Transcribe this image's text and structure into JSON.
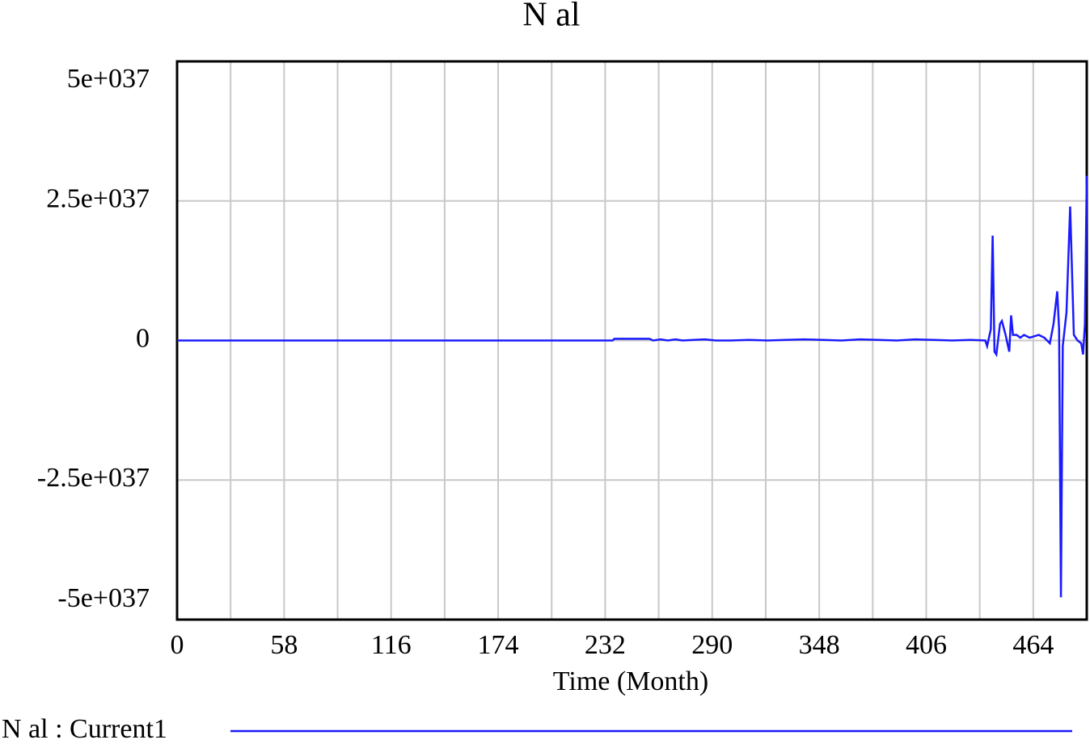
{
  "chart_data": {
    "type": "line",
    "title": "N al",
    "x_label": "Time (Month)",
    "x": [
      0,
      236,
      237,
      256,
      258,
      262,
      266,
      270,
      274,
      280,
      286,
      292,
      300,
      310,
      320,
      330,
      340,
      350,
      360,
      370,
      380,
      390,
      400,
      410,
      420,
      430,
      438,
      439,
      441,
      442,
      443,
      444,
      446,
      447,
      449,
      451,
      452,
      453,
      455,
      457,
      459,
      462,
      467,
      470,
      473,
      475,
      477,
      478,
      479,
      480,
      482,
      484,
      486,
      488,
      490,
      491,
      492,
      493
    ],
    "series": [
      {
        "name": "N al : Current1",
        "color": "#1a1aff",
        "values": [
          0,
          0,
          3e+35,
          3e+35,
          0,
          2e+35,
          0,
          2e+35,
          0,
          1e+35,
          2e+35,
          0,
          0,
          1e+35,
          0,
          1e+35,
          2e+35,
          1e+35,
          0,
          2e+35,
          1e+35,
          0,
          2e+35,
          1e+35,
          0,
          1e+35,
          0,
          -1e+36,
          2e+36,
          1.88e+37,
          -2e+36,
          -2.5e+36,
          3e+36,
          3.5e+36,
          1e+36,
          -2e+36,
          4.5e+36,
          1e+36,
          1e+36,
          5e+35,
          1e+36,
          5e+35,
          1e+36,
          5e+35,
          -5e+35,
          3e+36,
          8.8e+36,
          2e+36,
          -4.6e+37,
          -1e+36,
          5e+36,
          2.4e+37,
          1e+36,
          0,
          -5e+35,
          -2.5e+36,
          3e+36,
          2.95e+37
        ]
      }
    ],
    "xlim": [
      0,
      493
    ],
    "xticks": [
      0,
      58,
      116,
      174,
      232,
      290,
      348,
      406,
      464
    ],
    "ylim": [
      -5e+37,
      5e+37
    ],
    "yticks": [
      {
        "value": -5e+37,
        "label": "-5e+037"
      },
      {
        "value": -2.5e+37,
        "label": "-2.5e+037"
      },
      0,
      {
        "value": 2.5e+37,
        "label": "2.5e+037"
      },
      {
        "value": 5e+37,
        "label": "5e+037"
      }
    ],
    "grid": true
  }
}
